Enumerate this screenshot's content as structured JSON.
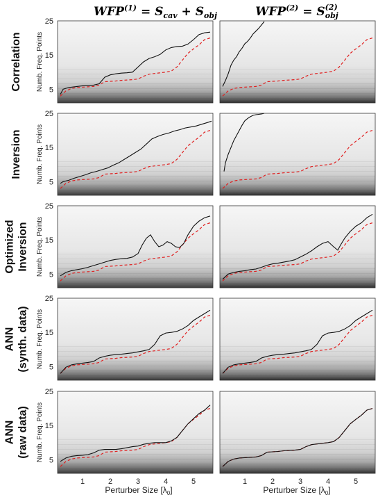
{
  "columns": [
    {
      "title": "WFP",
      "sup": "(1)",
      "rhs_a": "= S",
      "rhs_a_sub": "cav",
      "plus": " + S",
      "rhs_b_sub": "obj"
    },
    {
      "title": "WFP",
      "sup": "(2)",
      "rhs_a": "= S",
      "rhs_a_sub": "obj",
      "rhs_a_sup": "(2)"
    }
  ],
  "rows": [
    {
      "label_lines": [
        "Correlation"
      ]
    },
    {
      "label_lines": [
        "Inversion"
      ]
    },
    {
      "label_lines": [
        "Optimized",
        "Inversion"
      ]
    },
    {
      "label_lines": [
        "ANN",
        "(synth. data)"
      ]
    },
    {
      "label_lines": [
        "ANN",
        "(raw data)"
      ]
    }
  ],
  "axes": {
    "ylabel": "Numb. Freq. Points",
    "xlabel": "Perturber Size [λ",
    "xlabel_sub": "0",
    "xlabel_end": "]",
    "yticks": [
      "5",
      "15",
      "25"
    ],
    "xticks": [
      "1",
      "2",
      "3",
      "4",
      "5"
    ]
  },
  "chart_data": {
    "type": "line",
    "xlim": [
      0.1,
      5.7
    ],
    "ylim": [
      1,
      25
    ],
    "yticks": [
      5,
      15,
      25
    ],
    "xticks": [
      1,
      2,
      3,
      4,
      5
    ],
    "xlabel": "Perturber Size [λ0]",
    "ylabel": "Numb. Freq. Points",
    "background": "grayscale heatmap, dark at low frequency point counts",
    "line_styles": {
      "solid": "#111111",
      "dashed": "#e02020"
    },
    "reference_dashed": {
      "x": [
        0.2,
        0.4,
        0.6,
        0.8,
        1.0,
        1.2,
        1.4,
        1.6,
        1.8,
        2.0,
        2.2,
        2.4,
        2.6,
        2.8,
        3.0,
        3.2,
        3.4,
        3.6,
        3.8,
        4.0,
        4.2,
        4.4,
        4.6,
        4.8,
        5.0,
        5.2,
        5.4,
        5.6
      ],
      "y": [
        3,
        4.5,
        5.2,
        5.5,
        5.6,
        5.7,
        5.8,
        6.2,
        7.2,
        7.3,
        7.4,
        7.6,
        7.7,
        7.8,
        8.0,
        8.8,
        9.4,
        9.6,
        9.8,
        10.0,
        10.3,
        11.5,
        13.5,
        15.5,
        16.8,
        18.0,
        19.5,
        20.0
      ]
    },
    "panels": [
      {
        "row": 0,
        "col": 0,
        "solid": {
          "x": [
            0.2,
            0.3,
            0.5,
            0.8,
            1.0,
            1.2,
            1.4,
            1.6,
            1.8,
            2.0,
            2.2,
            2.4,
            2.6,
            2.8,
            3.0,
            3.2,
            3.4,
            3.6,
            3.8,
            4.0,
            4.2,
            4.4,
            4.6,
            4.8,
            5.0,
            5.2,
            5.4,
            5.6
          ],
          "y": [
            3.5,
            5.0,
            5.5,
            5.8,
            6.0,
            6.1,
            6.2,
            6.6,
            8.5,
            9.2,
            9.5,
            9.7,
            9.8,
            10.0,
            11.5,
            13.0,
            14.0,
            14.5,
            15.2,
            16.5,
            17.2,
            17.5,
            17.6,
            18.2,
            19.5,
            21.0,
            21.5,
            21.7
          ]
        }
      },
      {
        "row": 0,
        "col": 1,
        "solid": {
          "x": [
            0.2,
            0.3,
            0.4,
            0.5,
            0.6,
            0.7,
            0.8,
            0.9,
            1.0,
            1.1,
            1.2,
            1.3,
            1.4,
            1.5,
            1.6,
            1.7
          ],
          "y": [
            5.8,
            7.5,
            9.5,
            12.0,
            13.5,
            14.5,
            16.0,
            17.0,
            18.3,
            19.0,
            20.0,
            21.2,
            22.0,
            22.8,
            23.8,
            24.8
          ]
        }
      },
      {
        "row": 1,
        "col": 0,
        "solid": {
          "x": [
            0.2,
            0.3,
            0.5,
            0.7,
            0.9,
            1.1,
            1.3,
            1.5,
            1.7,
            1.9,
            2.1,
            2.3,
            2.5,
            2.7,
            2.9,
            3.1,
            3.3,
            3.5,
            3.7,
            3.9,
            4.1,
            4.3,
            4.5,
            4.7,
            4.9,
            5.1,
            5.3,
            5.5,
            5.65
          ],
          "y": [
            4.5,
            5.0,
            5.4,
            6.0,
            6.5,
            7.0,
            7.6,
            8.0,
            8.5,
            9.0,
            9.8,
            10.5,
            11.5,
            12.5,
            13.5,
            14.5,
            16.0,
            17.5,
            18.2,
            18.8,
            19.2,
            19.8,
            20.2,
            20.7,
            21.0,
            21.3,
            21.8,
            22.3,
            22.7
          ]
        }
      },
      {
        "row": 1,
        "col": 1,
        "solid": {
          "x": [
            0.25,
            0.3,
            0.4,
            0.5,
            0.6,
            0.7,
            0.8,
            0.9,
            1.0,
            1.1,
            1.2,
            1.3,
            1.4,
            1.5,
            1.6,
            1.7
          ],
          "y": [
            8.0,
            10.5,
            13.0,
            15.0,
            17.0,
            18.5,
            20.0,
            21.5,
            22.8,
            23.5,
            24.0,
            24.4,
            24.6,
            24.7,
            24.8,
            25.0
          ]
        }
      },
      {
        "row": 2,
        "col": 0,
        "solid": {
          "x": [
            0.2,
            0.4,
            0.6,
            0.8,
            1.0,
            1.2,
            1.4,
            1.6,
            1.8,
            2.0,
            2.2,
            2.4,
            2.6,
            2.8,
            3.0,
            3.15,
            3.3,
            3.45,
            3.6,
            3.75,
            3.9,
            4.05,
            4.2,
            4.35,
            4.5,
            4.65,
            4.8,
            5.0,
            5.2,
            5.4,
            5.6
          ],
          "y": [
            4.5,
            5.5,
            6.0,
            6.3,
            6.6,
            7.0,
            7.5,
            8.0,
            8.5,
            9.0,
            9.3,
            9.5,
            9.6,
            10.0,
            11.0,
            13.5,
            15.5,
            16.5,
            14.5,
            13.0,
            13.5,
            14.5,
            14.0,
            13.0,
            12.8,
            14.0,
            16.5,
            19.0,
            20.5,
            21.5,
            22.0
          ]
        }
      },
      {
        "row": 2,
        "col": 1,
        "solid": {
          "x": [
            0.2,
            0.4,
            0.6,
            0.8,
            1.0,
            1.2,
            1.4,
            1.6,
            1.8,
            2.0,
            2.2,
            2.4,
            2.6,
            2.8,
            3.0,
            3.2,
            3.4,
            3.6,
            3.8,
            4.0,
            4.2,
            4.35,
            4.45,
            4.6,
            4.8,
            5.0,
            5.2,
            5.4,
            5.6
          ],
          "y": [
            3.5,
            5.0,
            5.5,
            5.8,
            6.0,
            6.3,
            6.5,
            7.0,
            7.6,
            8.0,
            8.2,
            8.5,
            8.8,
            9.2,
            10.0,
            10.8,
            11.8,
            13.0,
            14.0,
            14.5,
            13.0,
            12.0,
            13.5,
            15.5,
            17.5,
            19.0,
            20.0,
            21.5,
            22.5
          ]
        }
      },
      {
        "row": 3,
        "col": 0,
        "solid": {
          "x": [
            0.2,
            0.4,
            0.6,
            0.8,
            1.0,
            1.2,
            1.4,
            1.6,
            1.8,
            2.0,
            2.2,
            2.4,
            2.6,
            2.8,
            3.0,
            3.2,
            3.4,
            3.6,
            3.8,
            4.0,
            4.2,
            4.4,
            4.6,
            4.8,
            5.0,
            5.2,
            5.4,
            5.6
          ],
          "y": [
            3.0,
            4.8,
            5.5,
            5.8,
            6.0,
            6.2,
            6.5,
            7.5,
            8.0,
            8.3,
            8.5,
            8.6,
            8.8,
            9.0,
            9.3,
            9.6,
            10.0,
            11.5,
            14.0,
            14.8,
            15.0,
            15.3,
            16.0,
            17.0,
            18.5,
            19.5,
            20.5,
            21.5
          ]
        }
      },
      {
        "row": 3,
        "col": 1,
        "solid": {
          "x": [
            0.2,
            0.4,
            0.6,
            0.8,
            1.0,
            1.2,
            1.4,
            1.6,
            1.8,
            2.0,
            2.2,
            2.4,
            2.6,
            2.8,
            3.0,
            3.2,
            3.4,
            3.6,
            3.8,
            4.0,
            4.2,
            4.4,
            4.6,
            4.8,
            5.0,
            5.2,
            5.4,
            5.6
          ],
          "y": [
            3.0,
            4.8,
            5.5,
            5.8,
            6.0,
            6.2,
            6.5,
            7.5,
            8.0,
            8.3,
            8.5,
            8.6,
            8.8,
            9.0,
            9.3,
            9.6,
            10.0,
            11.5,
            14.0,
            14.8,
            15.0,
            15.3,
            16.0,
            17.0,
            18.5,
            19.5,
            20.5,
            21.5
          ]
        }
      },
      {
        "row": 4,
        "col": 0,
        "solid": {
          "x": [
            0.2,
            0.4,
            0.6,
            0.8,
            1.0,
            1.2,
            1.4,
            1.6,
            1.8,
            2.0,
            2.2,
            2.4,
            2.6,
            2.8,
            3.0,
            3.2,
            3.4,
            3.6,
            3.8,
            4.0,
            4.2,
            4.4,
            4.6,
            4.8,
            5.0,
            5.2,
            5.4,
            5.6
          ],
          "y": [
            4.5,
            5.5,
            6.0,
            6.2,
            6.3,
            6.5,
            7.0,
            7.8,
            8.0,
            8.0,
            8.0,
            8.2,
            8.5,
            8.8,
            9.0,
            9.5,
            9.8,
            10.0,
            10.0,
            10.0,
            10.5,
            11.5,
            13.5,
            15.5,
            17.0,
            18.5,
            19.5,
            21.0
          ]
        }
      },
      {
        "row": 4,
        "col": 1,
        "solid": {
          "x": [
            0.2,
            0.4,
            0.6,
            0.8,
            1.0,
            1.2,
            1.4,
            1.6,
            1.8,
            2.0,
            2.2,
            2.4,
            2.6,
            2.8,
            3.0,
            3.2,
            3.4,
            3.6,
            3.8,
            4.0,
            4.2,
            4.4,
            4.6,
            4.8,
            5.0,
            5.2,
            5.4,
            5.6
          ],
          "y": [
            3.0,
            4.5,
            5.2,
            5.5,
            5.6,
            5.7,
            5.8,
            6.2,
            7.2,
            7.3,
            7.4,
            7.6,
            7.7,
            7.8,
            8.0,
            8.8,
            9.4,
            9.6,
            9.8,
            10.0,
            10.3,
            11.5,
            13.5,
            15.5,
            16.8,
            18.0,
            19.5,
            20.0
          ]
        }
      }
    ]
  }
}
